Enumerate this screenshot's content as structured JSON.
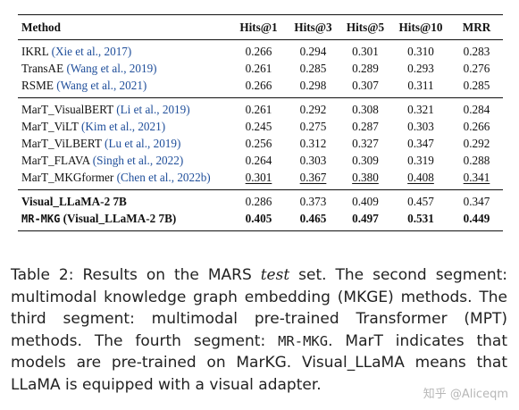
{
  "table": {
    "headers": [
      "Method",
      "Hits@1",
      "Hits@3",
      "Hits@5",
      "Hits@10",
      "MRR"
    ],
    "rows": [
      {
        "name": "IKRL",
        "cite": "(Xie et al., 2017)",
        "values": [
          "0.266",
          "0.294",
          "0.301",
          "0.310",
          "0.283"
        ]
      },
      {
        "name": "TransAE",
        "cite": "(Wang et al., 2019)",
        "values": [
          "0.261",
          "0.285",
          "0.289",
          "0.293",
          "0.276"
        ]
      },
      {
        "name": "RSME",
        "cite": "(Wang et al., 2021)",
        "values": [
          "0.266",
          "0.298",
          "0.307",
          "0.311",
          "0.285"
        ]
      },
      {
        "name": "MarT_VisualBERT",
        "cite": "(Li et al., 2019)",
        "values": [
          "0.261",
          "0.292",
          "0.308",
          "0.321",
          "0.284"
        ]
      },
      {
        "name": "MarT_ViLT",
        "cite": "(Kim et al., 2021)",
        "values": [
          "0.245",
          "0.275",
          "0.287",
          "0.303",
          "0.266"
        ]
      },
      {
        "name": "MarT_ViLBERT",
        "cite": "(Lu et al., 2019)",
        "values": [
          "0.256",
          "0.312",
          "0.327",
          "0.347",
          "0.292"
        ]
      },
      {
        "name": "MarT_FLAVA",
        "cite": "(Singh et al., 2022)",
        "values": [
          "0.264",
          "0.303",
          "0.309",
          "0.319",
          "0.288"
        ]
      },
      {
        "name": "MarT_MKGformer",
        "cite": "(Chen et al., 2022b)",
        "values": [
          "0.301",
          "0.367",
          "0.380",
          "0.408",
          "0.341"
        ]
      },
      {
        "name": "Visual_LLaMA-2 7B",
        "cite": "",
        "values": [
          "0.286",
          "0.373",
          "0.409",
          "0.457",
          "0.347"
        ]
      },
      {
        "name_mono": "MR-MKG",
        "name": "(Visual_LLaMA-2 7B)",
        "cite": "",
        "values": [
          "0.405",
          "0.465",
          "0.497",
          "0.531",
          "0.449"
        ]
      }
    ]
  },
  "caption": {
    "label": "Table 2:",
    "t1": " Results on the MARS ",
    "t2_italic": "test",
    "t3": " set. The second segment: multimodal knowledge graph embedding (MKGE) methods. The third segment: multimodal pre-trained Transformer (MPT) methods. The fourth segment: ",
    "t4_mono": "MR-MKG",
    "t5": ". MarT indicates that models are pre-trained on MarKG. Visual_LLaMA means that LLaMA is equipped with a visual adapter."
  },
  "watermark": "知乎 @Alicеqm"
}
